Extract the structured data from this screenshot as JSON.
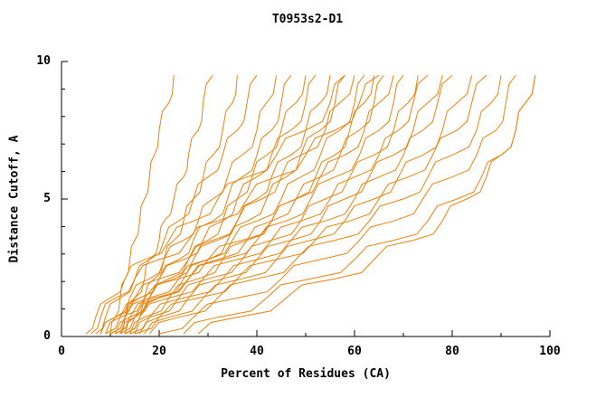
{
  "chart_data": {
    "type": "line",
    "title": "T0953s2-D1",
    "xlabel": "Percent of Residues (CA)",
    "ylabel": "Distance Cutoff, A",
    "xlim": [
      0,
      100
    ],
    "ylim": [
      0,
      10
    ],
    "xticks": [
      0,
      20,
      40,
      60,
      80,
      100
    ],
    "yticks": [
      0,
      5,
      10
    ],
    "x_minor_step": 10,
    "y_minor_step": 1,
    "grid": false,
    "legend": "none",
    "line_color": "#e8820c",
    "axis_color": "#000000",
    "y_levels": [
      0.1,
      0.7,
      1.4,
      2.1,
      2.8,
      3.5,
      4.2,
      5.0,
      5.8,
      6.6,
      7.5,
      8.5,
      9.5
    ],
    "series": [
      {
        "x": [
          10,
          11,
          12,
          13,
          14,
          15,
          16,
          17,
          18,
          19,
          20,
          22,
          23
        ]
      },
      {
        "x": [
          12,
          13,
          15,
          17,
          18,
          20,
          21,
          23,
          25,
          26,
          28,
          29,
          31
        ]
      },
      {
        "x": [
          13,
          15,
          17,
          19,
          21,
          23,
          25,
          27,
          29,
          31,
          33,
          35,
          36
        ]
      },
      {
        "x": [
          7,
          9,
          12,
          15,
          18,
          21,
          24,
          27,
          30,
          33,
          36,
          38,
          40
        ]
      },
      {
        "x": [
          8,
          11,
          14,
          18,
          21,
          25,
          28,
          31,
          34,
          37,
          40,
          42,
          44
        ]
      },
      {
        "x": [
          10,
          13,
          16,
          20,
          24,
          27,
          31,
          34,
          37,
          40,
          43,
          45,
          47
        ]
      },
      {
        "x": [
          12,
          15,
          18,
          22,
          26,
          30,
          33,
          36,
          39,
          42,
          45,
          48,
          50
        ]
      },
      {
        "x": [
          9,
          12,
          16,
          20,
          25,
          29,
          33,
          36,
          40,
          43,
          47,
          50,
          52
        ]
      },
      {
        "x": [
          11,
          14,
          18,
          23,
          27,
          32,
          36,
          40,
          43,
          47,
          50,
          53,
          55
        ]
      },
      {
        "x": [
          13,
          16,
          20,
          25,
          30,
          34,
          38,
          42,
          46,
          49,
          53,
          56,
          58
        ]
      },
      {
        "x": [
          8,
          11,
          15,
          20,
          26,
          31,
          36,
          41,
          45,
          49,
          54,
          57,
          60
        ]
      },
      {
        "x": [
          10,
          13,
          18,
          24,
          30,
          35,
          40,
          45,
          49,
          53,
          57,
          60,
          62
        ]
      },
      {
        "x": [
          14,
          17,
          22,
          28,
          33,
          38,
          43,
          48,
          52,
          56,
          59,
          62,
          64
        ]
      },
      {
        "x": [
          12,
          15,
          20,
          26,
          32,
          38,
          43,
          48,
          53,
          57,
          61,
          64,
          66
        ]
      },
      {
        "x": [
          9,
          12,
          17,
          24,
          30,
          37,
          43,
          48,
          53,
          58,
          62,
          65,
          68
        ]
      },
      {
        "x": [
          11,
          14,
          19,
          26,
          33,
          40,
          46,
          51,
          56,
          61,
          65,
          68,
          70
        ]
      },
      {
        "x": [
          15,
          18,
          24,
          30,
          37,
          43,
          49,
          54,
          59,
          64,
          68,
          71,
          73
        ]
      },
      {
        "x": [
          13,
          16,
          22,
          29,
          36,
          43,
          49,
          55,
          60,
          65,
          69,
          72,
          75
        ]
      },
      {
        "x": [
          16,
          20,
          26,
          33,
          40,
          47,
          53,
          58,
          63,
          68,
          72,
          75,
          78
        ]
      },
      {
        "x": [
          14,
          18,
          25,
          33,
          40,
          47,
          54,
          60,
          65,
          70,
          74,
          77,
          80
        ]
      },
      {
        "x": [
          17,
          22,
          29,
          37,
          44,
          51,
          58,
          64,
          69,
          74,
          78,
          81,
          84
        ]
      },
      {
        "x": [
          15,
          20,
          28,
          36,
          44,
          52,
          59,
          65,
          71,
          76,
          81,
          84,
          87
        ]
      },
      {
        "x": [
          18,
          24,
          32,
          40,
          48,
          56,
          63,
          70,
          75,
          80,
          85,
          88,
          90
        ]
      },
      {
        "x": [
          20,
          27,
          36,
          45,
          53,
          61,
          68,
          74,
          80,
          85,
          89,
          91,
          93
        ]
      },
      {
        "x": [
          25,
          32,
          42,
          51,
          60,
          68,
          75,
          81,
          86,
          90,
          93,
          95,
          97
        ]
      },
      {
        "x": [
          6,
          8,
          11,
          15,
          20,
          26,
          32,
          38,
          44,
          50,
          56,
          61,
          65
        ]
      },
      {
        "x": [
          28,
          36,
          46,
          56,
          64,
          72,
          78,
          83,
          87,
          90,
          93,
          95,
          97
        ]
      },
      {
        "x": [
          5,
          7,
          10,
          13,
          17,
          22,
          27,
          32,
          38,
          44,
          50,
          55,
          58
        ]
      }
    ]
  }
}
